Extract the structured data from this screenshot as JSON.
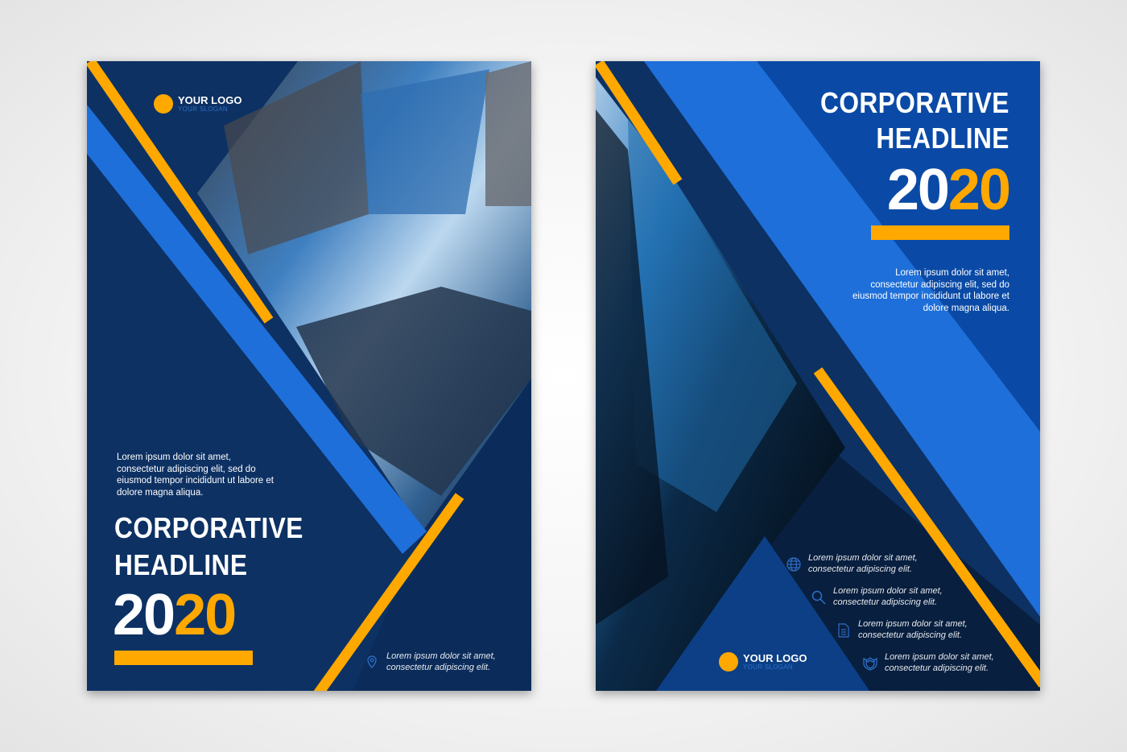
{
  "colors": {
    "navy": "#0d3163",
    "blue": "#1e6fd9",
    "orange": "#ffa800",
    "dark": "#0a2347"
  },
  "left": {
    "logo": {
      "name": "YOUR LOGO",
      "slogan": "YOUR SLOGAN"
    },
    "paragraph": "Lorem ipsum dolor sit amet, consectetur adipiscing elit, sed do eiusmod tempor incididunt ut labore et dolore magna aliqua.",
    "headline": [
      "CORPORATIVE",
      "HEADLINE"
    ],
    "year": {
      "white": "20",
      "orange": "20"
    },
    "info": {
      "icon": "location-pin-icon",
      "text": "Lorem ipsum dolor sit amet, consectetur adipiscing elit."
    }
  },
  "right": {
    "headline": [
      "CORPORATIVE",
      "HEADLINE"
    ],
    "year": {
      "white": "20",
      "orange": "20"
    },
    "paragraph": "Lorem ipsum dolor sit amet, consectetur adipiscing elit, sed do eiusmod tempor incididunt ut labore et dolore magna aliqua.",
    "info": [
      {
        "icon": "globe-icon",
        "text": "Lorem ipsum dolor sit amet, consectetur adipiscing elit."
      },
      {
        "icon": "search-icon",
        "text": "Lorem ipsum dolor sit amet, consectetur adipiscing elit."
      },
      {
        "icon": "document-icon",
        "text": "Lorem ipsum dolor sit amet, consectetur adipiscing elit."
      },
      {
        "icon": "shield-icon",
        "text": "Lorem ipsum dolor sit amet, consectetur adipiscing elit."
      }
    ],
    "logo": {
      "name": "YOUR LOGO",
      "slogan": "YOUR SLOGAN"
    }
  }
}
